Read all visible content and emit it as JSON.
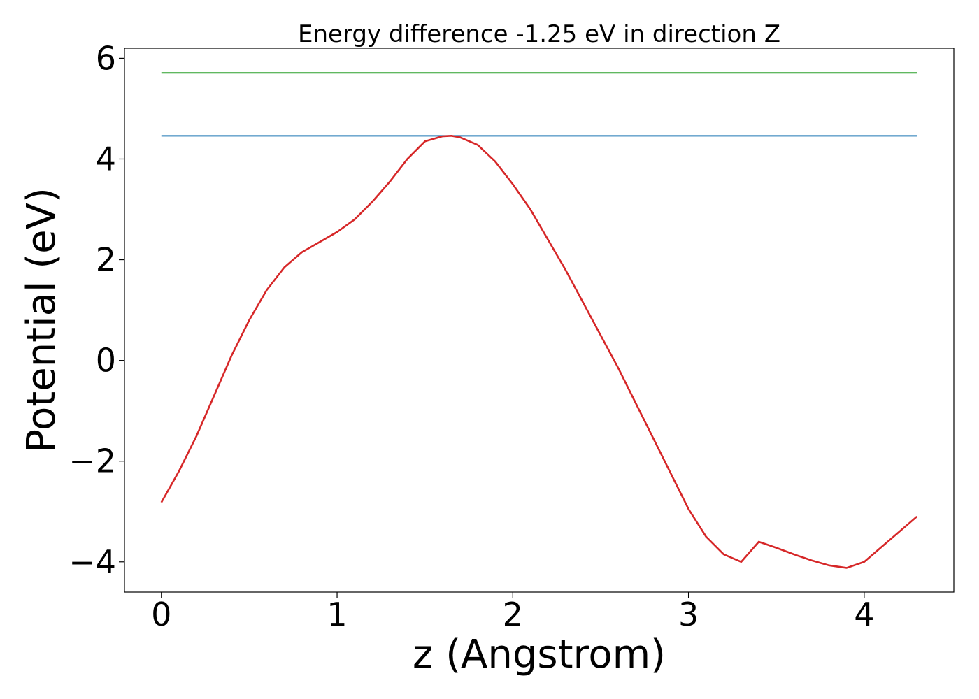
{
  "chart_data": {
    "type": "line",
    "title": "Energy difference -1.25 eV in direction Z",
    "xlabel": "z (Angstrom)",
    "ylabel": "Potential (eV)",
    "xlim": [
      -0.21,
      4.51
    ],
    "ylim": [
      -4.6,
      6.2
    ],
    "xticks": [
      0,
      1,
      2,
      3,
      4
    ],
    "xtick_labels": [
      "0",
      "1",
      "2",
      "3",
      "4"
    ],
    "yticks": [
      -4,
      -2,
      0,
      2,
      4,
      6
    ],
    "ytick_labels": [
      "−4",
      "−2",
      "0",
      "2",
      "4",
      "6"
    ],
    "grid": false,
    "series": [
      {
        "color": "#2ca02c",
        "x": [
          0,
          4.3
        ],
        "y": [
          5.71,
          5.71
        ]
      },
      {
        "color": "#1f77b4",
        "x": [
          0,
          4.3
        ],
        "y": [
          4.46,
          4.46
        ]
      },
      {
        "color": "#d62728",
        "x": [
          0,
          0.1,
          0.2,
          0.3,
          0.4,
          0.5,
          0.6,
          0.7,
          0.8,
          0.9,
          1.0,
          1.1,
          1.2,
          1.3,
          1.4,
          1.5,
          1.6,
          1.65,
          1.7,
          1.8,
          1.9,
          2.0,
          2.1,
          2.2,
          2.3,
          2.4,
          2.5,
          2.6,
          2.7,
          2.8,
          2.9,
          3.0,
          3.1,
          3.2,
          3.3,
          3.4,
          3.5,
          3.6,
          3.7,
          3.8,
          3.9,
          4.0,
          4.1,
          4.2,
          4.3
        ],
        "y": [
          -2.82,
          -2.2,
          -1.5,
          -0.7,
          0.1,
          0.8,
          1.4,
          1.85,
          2.15,
          2.35,
          2.55,
          2.8,
          3.15,
          3.55,
          4.0,
          4.35,
          4.45,
          4.46,
          4.43,
          4.28,
          3.95,
          3.5,
          3.0,
          2.4,
          1.8,
          1.15,
          0.5,
          -0.15,
          -0.85,
          -1.55,
          -2.25,
          -2.95,
          -3.5,
          -3.85,
          -4.0,
          -3.6,
          -3.72,
          -3.85,
          -3.97,
          -4.07,
          -4.12,
          -4.0,
          -3.7,
          -3.4,
          -3.1
        ]
      }
    ]
  }
}
